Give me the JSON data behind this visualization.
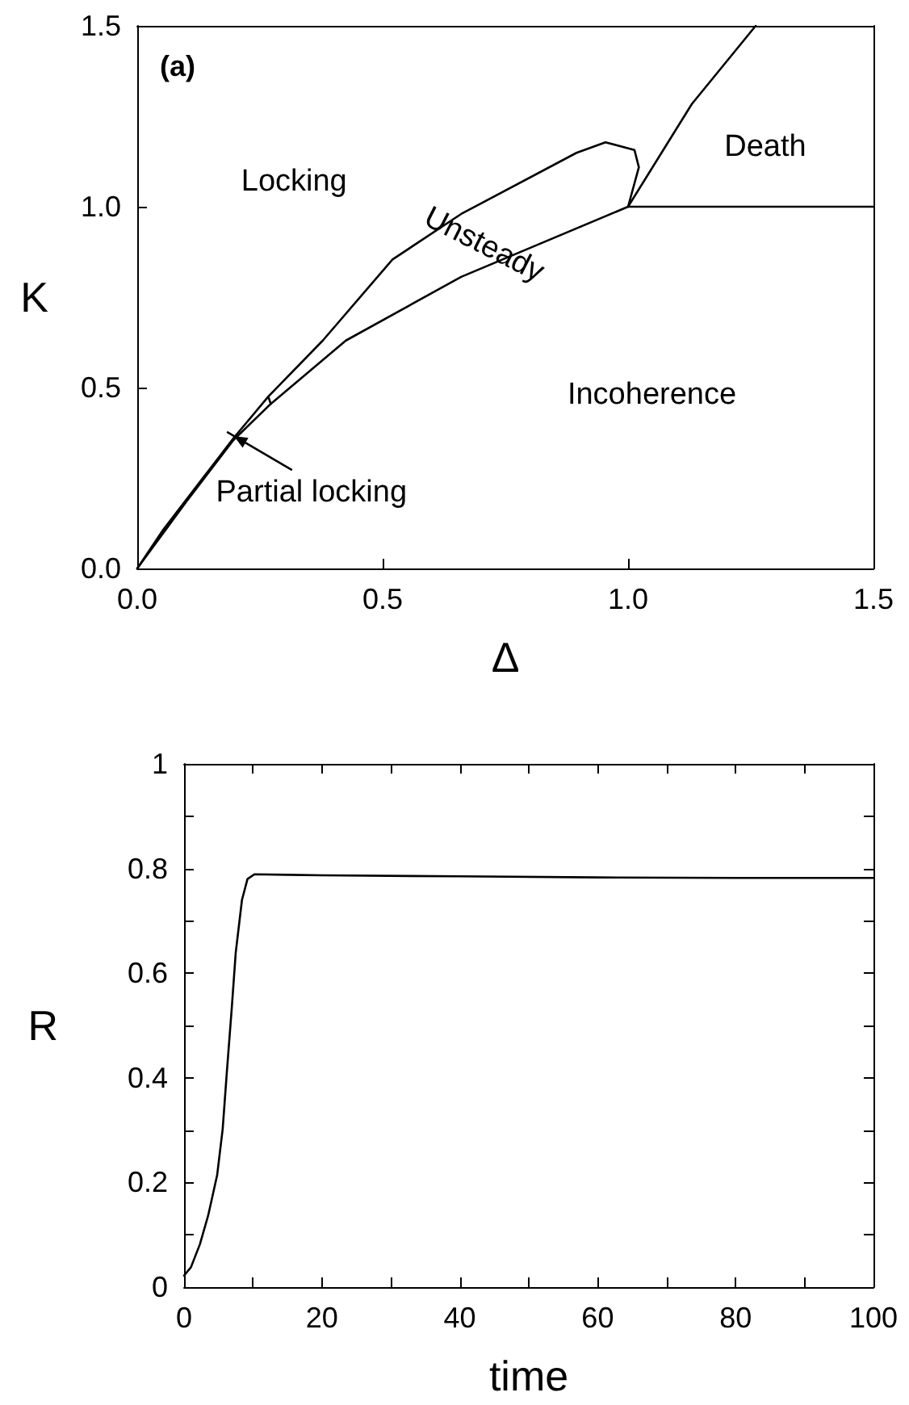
{
  "chart_data": [
    {
      "type": "line",
      "xlabel": "Δ",
      "ylabel": "K",
      "xlim": [
        0,
        1.5
      ],
      "ylim": [
        0,
        1.5
      ],
      "xticks": [
        {
          "value": 0,
          "label": "0.0"
        },
        {
          "value": 0.5,
          "label": "0.5"
        },
        {
          "value": 1,
          "label": "1.0"
        },
        {
          "value": 1.5,
          "label": "1.5"
        }
      ],
      "yticks": [
        {
          "value": 0,
          "label": "0.0"
        },
        {
          "value": 0.5,
          "label": "0.5"
        },
        {
          "value": 1,
          "label": "1.0"
        },
        {
          "value": 1.5,
          "label": "1.5"
        }
      ],
      "marker": "none",
      "line_style": "solid",
      "grid": false,
      "series": [
        {
          "color": "#000000",
          "x": [
            0,
            0.053,
            0.196,
            0.267,
            0.272,
            0.267,
            0.378,
            0.52,
            0.66,
            0.895,
            0.954,
            1.013,
            1.022,
            1.0,
            1.5
          ],
          "values": [
            0,
            0.107,
            0.36,
            0.475,
            0.455,
            0.475,
            0.63,
            0.854,
            0.98,
            1.149,
            1.178,
            1.157,
            1.109,
            1.0,
            1.0
          ]
        },
        {
          "color": "#000000",
          "x": [
            0,
            0.1,
            0.196,
            0.272,
            0.425,
            0.66,
            1.0,
            1.13,
            1.26
          ],
          "values": [
            0,
            0.185,
            0.355,
            0.455,
            0.63,
            0.806,
            1.0,
            1.284,
            1.5
          ]
        }
      ],
      "annotations": [
        "(a)",
        "Locking",
        "Unsteady",
        "Death",
        "Incoherence",
        {
          "text": "Partial locking",
          "x": 0.197,
          "y": 0.366
        }
      ]
    },
    {
      "type": "line",
      "xlabel": "time",
      "ylabel": "R",
      "xlim": [
        0,
        100
      ],
      "ylim": [
        0,
        1
      ],
      "xticks": [
        0,
        {
          "value": 10,
          "label": null
        },
        20,
        {
          "value": 30,
          "label": null
        },
        40,
        {
          "value": 50,
          "label": null
        },
        60,
        {
          "value": 70,
          "label": null
        },
        80,
        {
          "value": 90,
          "label": null
        },
        100
      ],
      "yticks": [
        0,
        {
          "value": 0.1,
          "label": null
        },
        0.2,
        {
          "value": 0.3,
          "label": null
        },
        0.4,
        {
          "value": 0.5,
          "label": null
        },
        0.6,
        {
          "value": 0.7,
          "label": null
        },
        0.8,
        {
          "value": 0.9,
          "label": null
        },
        1
      ],
      "marker": "none",
      "line_style": "solid",
      "grid": false,
      "series": [
        {
          "color": "#000000",
          "x": [
            0,
            1,
            2.3,
            3.5,
            4.8,
            5.6,
            6.2,
            6.9,
            7.5,
            8.4,
            9.2,
            10.2,
            15,
            20,
            40,
            60,
            80,
            100
          ],
          "values": [
            0.022,
            0.038,
            0.082,
            0.137,
            0.214,
            0.302,
            0.41,
            0.53,
            0.64,
            0.74,
            0.78,
            0.789,
            0.788,
            0.787,
            0.785,
            0.783,
            0.782,
            0.782
          ]
        }
      ]
    }
  ]
}
